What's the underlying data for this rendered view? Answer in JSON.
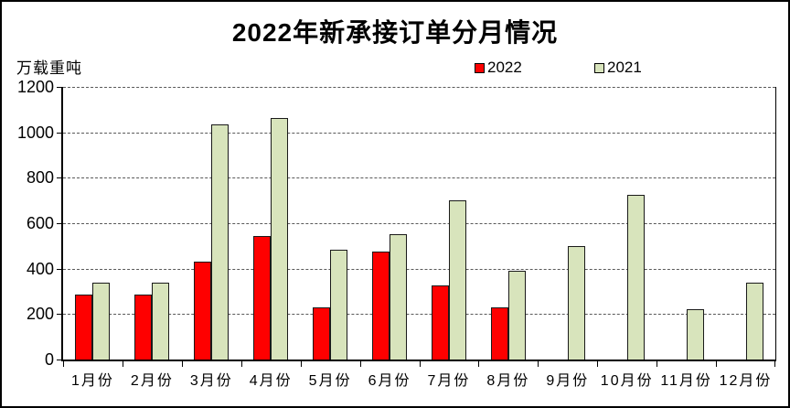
{
  "chart_data": {
    "type": "bar",
    "title": "2022年新承接订单分月情况",
    "ylabel": "万载重吨",
    "xlabel": "",
    "categories": [
      "1月份",
      "2月份",
      "3月份",
      "4月份",
      "5月份",
      "6月份",
      "7月份",
      "8月份",
      "9月份",
      "10月份",
      "11月份",
      "12月份"
    ],
    "series": [
      {
        "name": "2022",
        "color": "#fe0000",
        "values": [
          285,
          285,
          430,
          545,
          230,
          475,
          325,
          230,
          null,
          null,
          null,
          null
        ]
      },
      {
        "name": "2021",
        "color": "#d8e4bc",
        "values": [
          340,
          340,
          1035,
          1065,
          485,
          550,
          700,
          390,
          500,
          725,
          220,
          340
        ]
      }
    ],
    "ylim": [
      0,
      1200
    ],
    "ytick_step": 200,
    "grid": true,
    "legend_position": "top"
  }
}
